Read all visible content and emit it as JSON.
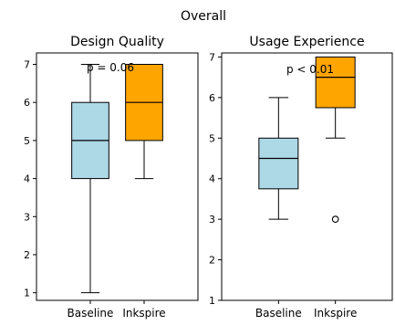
{
  "suptitle": "Overall",
  "colors": {
    "baseline": "#add8e6",
    "inkspire": "#ffa500",
    "edge": "#000000"
  },
  "chart_data": [
    {
      "type": "boxplot",
      "title": "Design Quality",
      "categories": [
        "Baseline",
        "Inkspire"
      ],
      "ylim": [
        0.8,
        7.3
      ],
      "yticks": [
        1,
        2,
        3,
        4,
        5,
        6,
        7
      ],
      "boxes": [
        {
          "category": "Baseline",
          "whisker_low": 1,
          "q1": 4,
          "median": 5,
          "q3": 6,
          "whisker_high": 7,
          "outliers": []
        },
        {
          "category": "Inkspire",
          "whisker_low": 4,
          "q1": 5,
          "median": 6,
          "q3": 7,
          "whisker_high": 7,
          "outliers": []
        }
      ],
      "annotation": "p = 0.06"
    },
    {
      "type": "boxplot",
      "title": "Usage Experience",
      "categories": [
        "Baseline",
        "Inkspire"
      ],
      "ylim": [
        1,
        7.1
      ],
      "yticks": [
        1,
        2,
        3,
        4,
        5,
        6,
        7
      ],
      "boxes": [
        {
          "category": "Baseline",
          "whisker_low": 3,
          "q1": 3.75,
          "median": 4.5,
          "q3": 5,
          "whisker_high": 6,
          "outliers": []
        },
        {
          "category": "Inkspire",
          "whisker_low": 5,
          "q1": 5.75,
          "median": 6.5,
          "q3": 7,
          "whisker_high": 7,
          "outliers": [
            3
          ]
        }
      ],
      "annotation": "p < 0.01"
    }
  ]
}
